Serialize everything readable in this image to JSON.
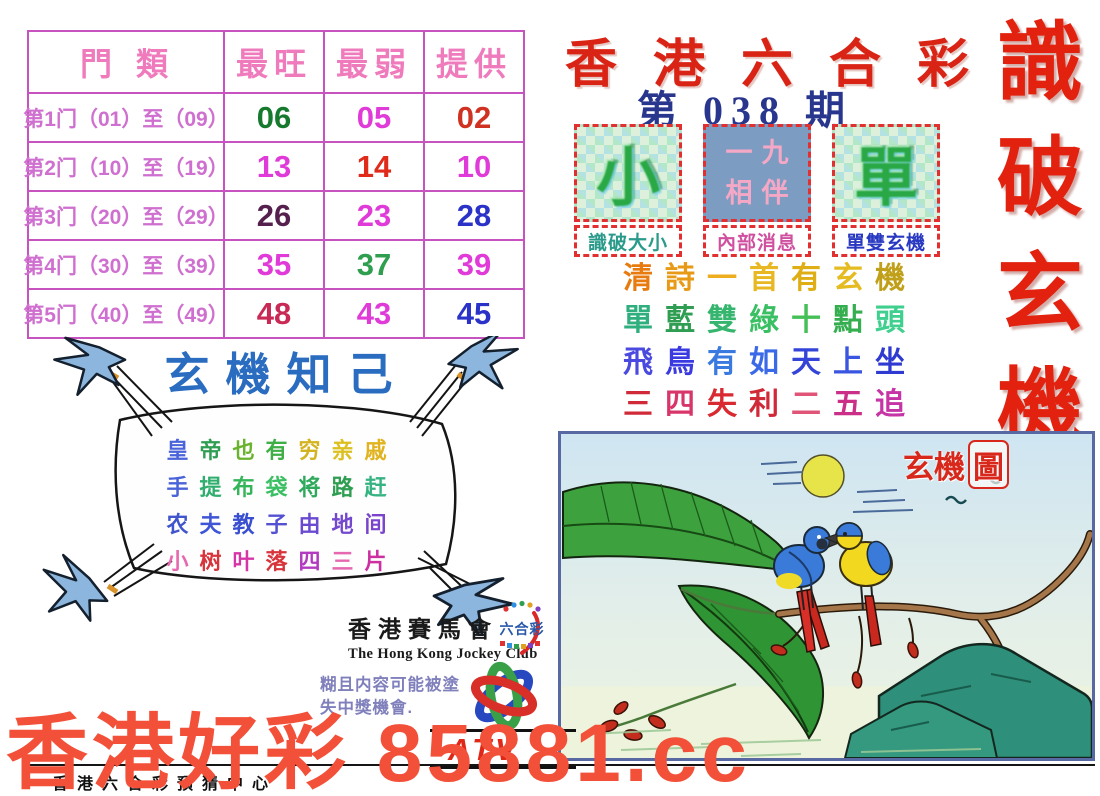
{
  "masthead": {
    "main_title": "香港六合彩",
    "main_title_color": "#d92415",
    "issue": "第 038 期",
    "issue_color": "#28368e",
    "side_title": "識破玄機",
    "side_title_color": "#e3210f"
  },
  "gate_table": {
    "headers": [
      "門類",
      "最旺",
      "最弱",
      "提供"
    ],
    "header_color": "#ef7bbd",
    "border_color": "#c653c0",
    "rows": [
      {
        "label": "第1门（01）至（09）",
        "cells": [
          {
            "value": "06",
            "color": "#157a2e"
          },
          {
            "value": "05",
            "color": "#e03ad8"
          },
          {
            "value": "02",
            "color": "#cf3221"
          }
        ]
      },
      {
        "label": "第2门（10）至（19）",
        "cells": [
          {
            "value": "13",
            "color": "#e03ad8"
          },
          {
            "value": "14",
            "color": "#e02a1a"
          },
          {
            "value": "10",
            "color": "#e03ad8"
          }
        ]
      },
      {
        "label": "第3门（20）至（29）",
        "cells": [
          {
            "value": "26",
            "color": "#55204e"
          },
          {
            "value": "23",
            "color": "#e03ad8"
          },
          {
            "value": "28",
            "color": "#2b32c8"
          }
        ]
      },
      {
        "label": "第4门（30）至（39）",
        "cells": [
          {
            "value": "35",
            "color": "#e03ad8"
          },
          {
            "value": "37",
            "color": "#2f9e4f"
          },
          {
            "value": "39",
            "color": "#e03ad8"
          }
        ]
      },
      {
        "label": "第5门（40）至（49）",
        "cells": [
          {
            "value": "48",
            "color": "#c92a55"
          },
          {
            "value": "43",
            "color": "#e03ad8"
          },
          {
            "value": "45",
            "color": "#2b32c8"
          }
        ]
      }
    ]
  },
  "secret_boxes": [
    {
      "hidden_char": "小",
      "label": "識破大小",
      "label_color": "#2a9a8a"
    },
    {
      "line1": "一九",
      "line2": "相伴",
      "label": "內部消息",
      "label_color": "#d050a0"
    },
    {
      "hidden_char": "單",
      "label": "單雙玄機",
      "label_color": "#2838c0"
    }
  ],
  "poem": {
    "lines": [
      {
        "text": "清詩一首有玄機",
        "colors": [
          "#e87b10",
          "#e89a16",
          "#eead1c",
          "#e8b824",
          "#dfae14",
          "#e4bc22",
          "#c0a018"
        ]
      },
      {
        "text": "單藍雙綠十點頭",
        "colors": [
          "#2fae7e",
          "#2f9e52",
          "#35b56e",
          "#3bbf63",
          "#45c057",
          "#35ae50",
          "#3fcf8e"
        ]
      },
      {
        "text": "飛鳥有如天上坐",
        "colors": [
          "#4a4ae0",
          "#3a3ae0",
          "#3a7ae0",
          "#3a6ae8",
          "#3444d8",
          "#3a55e0",
          "#2f3ad0"
        ]
      },
      {
        "text": "三四失利二五追",
        "colors": [
          "#d02a38",
          "#d8356a",
          "#d82a30",
          "#d02a38",
          "#e05577",
          "#cc2f88",
          "#c535a5"
        ]
      }
    ]
  },
  "banner": {
    "title": "玄機知己",
    "title_color": "#2a6cc0",
    "lines": [
      {
        "text": "皇帝也有穷亲戚",
        "colors": [
          "#4a63d8",
          "#2f9e52",
          "#6ab32e",
          "#3fae46",
          "#d3b31f",
          "#dbc01f",
          "#e0b31f"
        ]
      },
      {
        "text": "手提布袋将路赶",
        "colors": [
          "#4a63d8",
          "#2fae6e",
          "#35b55a",
          "#3bbf63",
          "#2fa95c",
          "#2f9e52",
          "#37b383"
        ]
      },
      {
        "text": "农夫教子由地间",
        "colors": [
          "#4055cc",
          "#3f55d6",
          "#3a4fd0",
          "#5450d2",
          "#6a4ad0",
          "#7347ce",
          "#7a45cc"
        ]
      },
      {
        "text": "小树叶落四三片",
        "colors": [
          "#e668b0",
          "#d8343c",
          "#d635a8",
          "#d8343c",
          "#b23ac0",
          "#e668b0",
          "#cc2fa0"
        ]
      }
    ]
  },
  "jockey": {
    "name_cn": "香港賽馬會",
    "name_en": "The Hong Kong Jockey Club",
    "logo_text": "六合彩"
  },
  "watermark": {
    "line1": "糊且内容可能被塗",
    "line2": "失中獎機會."
  },
  "atv": {
    "label": "ATV",
    "label_color": "#e02818"
  },
  "footer": {
    "big_text": "香港好彩 85881.cc",
    "big_text_color": "#f25038",
    "center_name": "香港六合彩預猜中心"
  },
  "picture": {
    "label_main": "玄機",
    "label_boxed": "圖",
    "label_color": "#d8281c"
  }
}
